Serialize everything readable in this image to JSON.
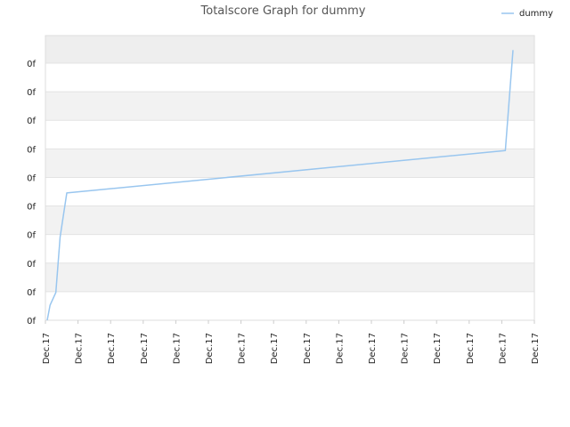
{
  "chart_data": {
    "type": "line",
    "title": "Totalscore Graph for dummy",
    "xlabel": "",
    "ylabel": "",
    "legend": {
      "position": "top-right",
      "entries": [
        "dummy"
      ]
    },
    "grid": true,
    "x_tick_labels": [
      "Dec.17",
      "Dec.17",
      "Dec.17",
      "Dec.17",
      "Dec.17",
      "Dec.17",
      "Dec.17",
      "Dec.17",
      "Dec.17",
      "Dec.17",
      "Dec.17",
      "Dec.17",
      "Dec.17",
      "Dec.17",
      "Dec.17",
      "Dec.17"
    ],
    "y_tick_labels": [
      "0f",
      "0f",
      "0f",
      "0f",
      "0f",
      "0f",
      "0f",
      "0f",
      "0f",
      "0f"
    ],
    "xlim": [
      0,
      1
    ],
    "ylim": [
      0,
      1
    ],
    "series": [
      {
        "name": "dummy",
        "color": "#99c6ef",
        "x": [
          0.0,
          0.006,
          0.018,
          0.027,
          0.041,
          0.958,
          0.974
        ],
        "y": [
          0.0,
          0.053,
          0.098,
          0.294,
          0.45,
          0.6,
          0.955
        ]
      }
    ]
  }
}
